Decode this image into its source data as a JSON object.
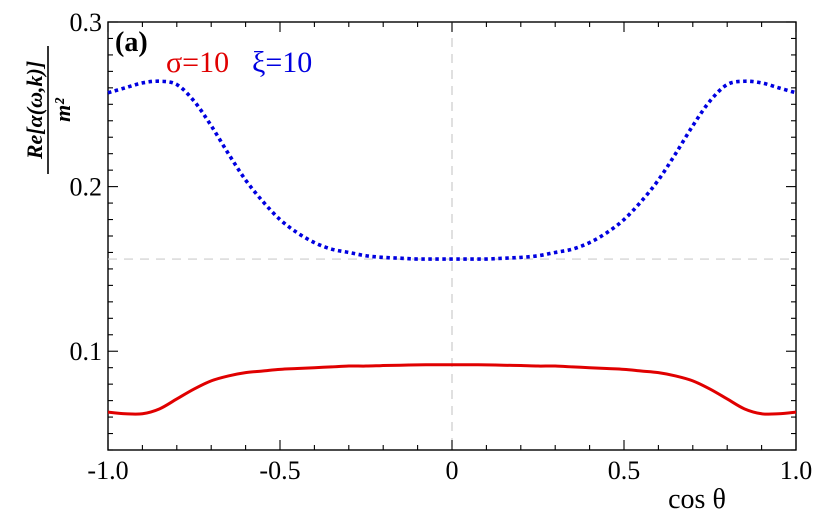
{
  "chart_data": {
    "type": "line",
    "panel_label": "(a)",
    "xlabel": "cos θ",
    "ylabel_numerator": "Re[α(ω,k)]",
    "ylabel_denominator": "m²",
    "xlim": [
      -1.0,
      1.0
    ],
    "ylim": [
      0.04,
      0.3
    ],
    "x_ticks": [
      -1.0,
      -0.5,
      0,
      0.5,
      1.0
    ],
    "x_tick_labels": [
      "-1.0",
      "-0.5",
      "0",
      "0.5",
      "1.0"
    ],
    "y_ticks": [
      0.1,
      0.2,
      0.3
    ],
    "y_tick_labels": [
      "0.1",
      "0.2",
      "0.3"
    ],
    "reference_lines": {
      "vertical_x": 0,
      "horizontal_y": 0.156
    },
    "legend": [
      {
        "text": "σ=10",
        "color": "#e00000"
      },
      {
        "text": "ξ=10",
        "color": "#0000e0"
      }
    ],
    "x": [
      -1.0,
      -0.95,
      -0.9,
      -0.85,
      -0.8,
      -0.75,
      -0.7,
      -0.65,
      -0.6,
      -0.55,
      -0.5,
      -0.45,
      -0.4,
      -0.35,
      -0.3,
      -0.25,
      -0.2,
      -0.15,
      -0.1,
      -0.05,
      0.0,
      0.05,
      0.1,
      0.15,
      0.2,
      0.25,
      0.3,
      0.35,
      0.4,
      0.45,
      0.5,
      0.55,
      0.6,
      0.65,
      0.7,
      0.75,
      0.8,
      0.85,
      0.9,
      0.95,
      1.0
    ],
    "series": [
      {
        "color": "#e00000",
        "style": "solid",
        "values": [
          0.063,
          0.062,
          0.062,
          0.065,
          0.071,
          0.077,
          0.082,
          0.085,
          0.087,
          0.088,
          0.089,
          0.0895,
          0.09,
          0.0905,
          0.091,
          0.091,
          0.0913,
          0.0915,
          0.0917,
          0.0918,
          0.0918,
          0.0918,
          0.0917,
          0.0915,
          0.0913,
          0.091,
          0.091,
          0.0905,
          0.09,
          0.0895,
          0.089,
          0.088,
          0.087,
          0.085,
          0.082,
          0.077,
          0.071,
          0.065,
          0.062,
          0.062,
          0.063
        ]
      },
      {
        "color": "#0000e0",
        "style": "dotted",
        "values": [
          0.257,
          0.26,
          0.263,
          0.264,
          0.262,
          0.252,
          0.237,
          0.22,
          0.204,
          0.191,
          0.18,
          0.172,
          0.166,
          0.162,
          0.16,
          0.158,
          0.157,
          0.1565,
          0.156,
          0.156,
          0.156,
          0.156,
          0.156,
          0.1565,
          0.157,
          0.158,
          0.16,
          0.162,
          0.166,
          0.172,
          0.18,
          0.191,
          0.204,
          0.22,
          0.237,
          0.252,
          0.262,
          0.264,
          0.263,
          0.26,
          0.257
        ]
      }
    ]
  }
}
